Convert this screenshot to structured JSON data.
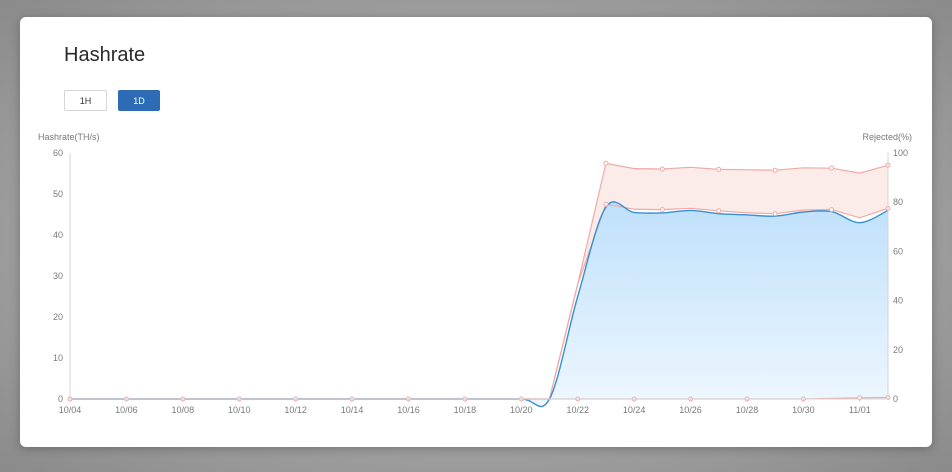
{
  "title": "Hashrate",
  "range_buttons": [
    "1H",
    "1D"
  ],
  "active_range": "1D",
  "colors": {
    "accent": "#2d6cb4",
    "hashrate_line": "#3a8fd0",
    "hashrate_fill_top": "#bfe0fb",
    "hashrate_fill_bottom": "#eef7ff",
    "rejected_line": "#efaaa6",
    "rejected_fill": "#fbecea"
  },
  "chart_data": {
    "type": "area",
    "ylabel": "Hashrate(TH/s)",
    "y2label": "Rejected(%)",
    "ylim": [
      0,
      60
    ],
    "y2lim": [
      0,
      100
    ],
    "yticks": [
      0,
      10,
      20,
      30,
      40,
      50,
      60
    ],
    "y2ticks": [
      0,
      20,
      40,
      60,
      80,
      100
    ],
    "xlim": [
      "10/04",
      "11/02"
    ],
    "xticks": [
      "10/04",
      "10/06",
      "10/08",
      "10/10",
      "10/12",
      "10/14",
      "10/16",
      "10/18",
      "10/20",
      "10/22",
      "10/24",
      "10/26",
      "10/28",
      "10/30",
      "11/01"
    ],
    "grid": false,
    "series": [
      {
        "axis": "left",
        "x": [
          "10/04",
          "10/06",
          "10/08",
          "10/10",
          "10/12",
          "10/14",
          "10/16",
          "10/18",
          "10/20",
          "10/21",
          "10/22",
          "10/23",
          "10/24",
          "10/25",
          "10/26",
          "10/27",
          "10/28",
          "10/29",
          "10/30",
          "10/31",
          "11/01",
          "11/02"
        ],
        "y": [
          0,
          0,
          0,
          0,
          0,
          0,
          0,
          0,
          0,
          0,
          25,
          46.8,
          45.5,
          45.4,
          46,
          45.2,
          44.9,
          44.6,
          45.6,
          45.7,
          43,
          46
        ]
      },
      {
        "axis": "left",
        "x": [
          "10/04",
          "10/06",
          "10/08",
          "10/10",
          "10/12",
          "10/14",
          "10/16",
          "10/18",
          "10/20",
          "10/21",
          "10/22",
          "10/23",
          "10/24",
          "10/25",
          "10/26",
          "10/27",
          "10/28",
          "10/29",
          "10/30",
          "10/31",
          "11/01",
          "11/02"
        ],
        "y": [
          0,
          0,
          0,
          0,
          0,
          0,
          0,
          0,
          0,
          0,
          28,
          47.5,
          46.3,
          46.2,
          46.5,
          45.9,
          45.4,
          45.2,
          46.1,
          46.2,
          44.2,
          46.5
        ]
      },
      {
        "axis": "left",
        "x": [
          "10/04",
          "10/06",
          "10/08",
          "10/10",
          "10/12",
          "10/14",
          "10/16",
          "10/18",
          "10/20",
          "10/21",
          "10/22",
          "10/23",
          "10/24",
          "10/25",
          "10/26",
          "10/27",
          "10/28",
          "10/29",
          "10/30",
          "10/31",
          "11/01",
          "11/02"
        ],
        "y": [
          0,
          0,
          0,
          0,
          0,
          0,
          0,
          0,
          0,
          0,
          28,
          57.5,
          56.2,
          56.1,
          56.5,
          56.0,
          55.9,
          55.8,
          56.4,
          56.3,
          55.1,
          57.0
        ]
      },
      {
        "axis": "right",
        "x": [
          "10/04",
          "10/06",
          "10/08",
          "10/10",
          "10/12",
          "10/14",
          "10/16",
          "10/18",
          "10/20",
          "10/22",
          "10/24",
          "10/26",
          "10/28",
          "10/30",
          "11/01",
          "11/02"
        ],
        "y": [
          0,
          0,
          0,
          0,
          0,
          0,
          0,
          0,
          0,
          0,
          0,
          0,
          0,
          0,
          0.5,
          0.6
        ]
      }
    ]
  }
}
